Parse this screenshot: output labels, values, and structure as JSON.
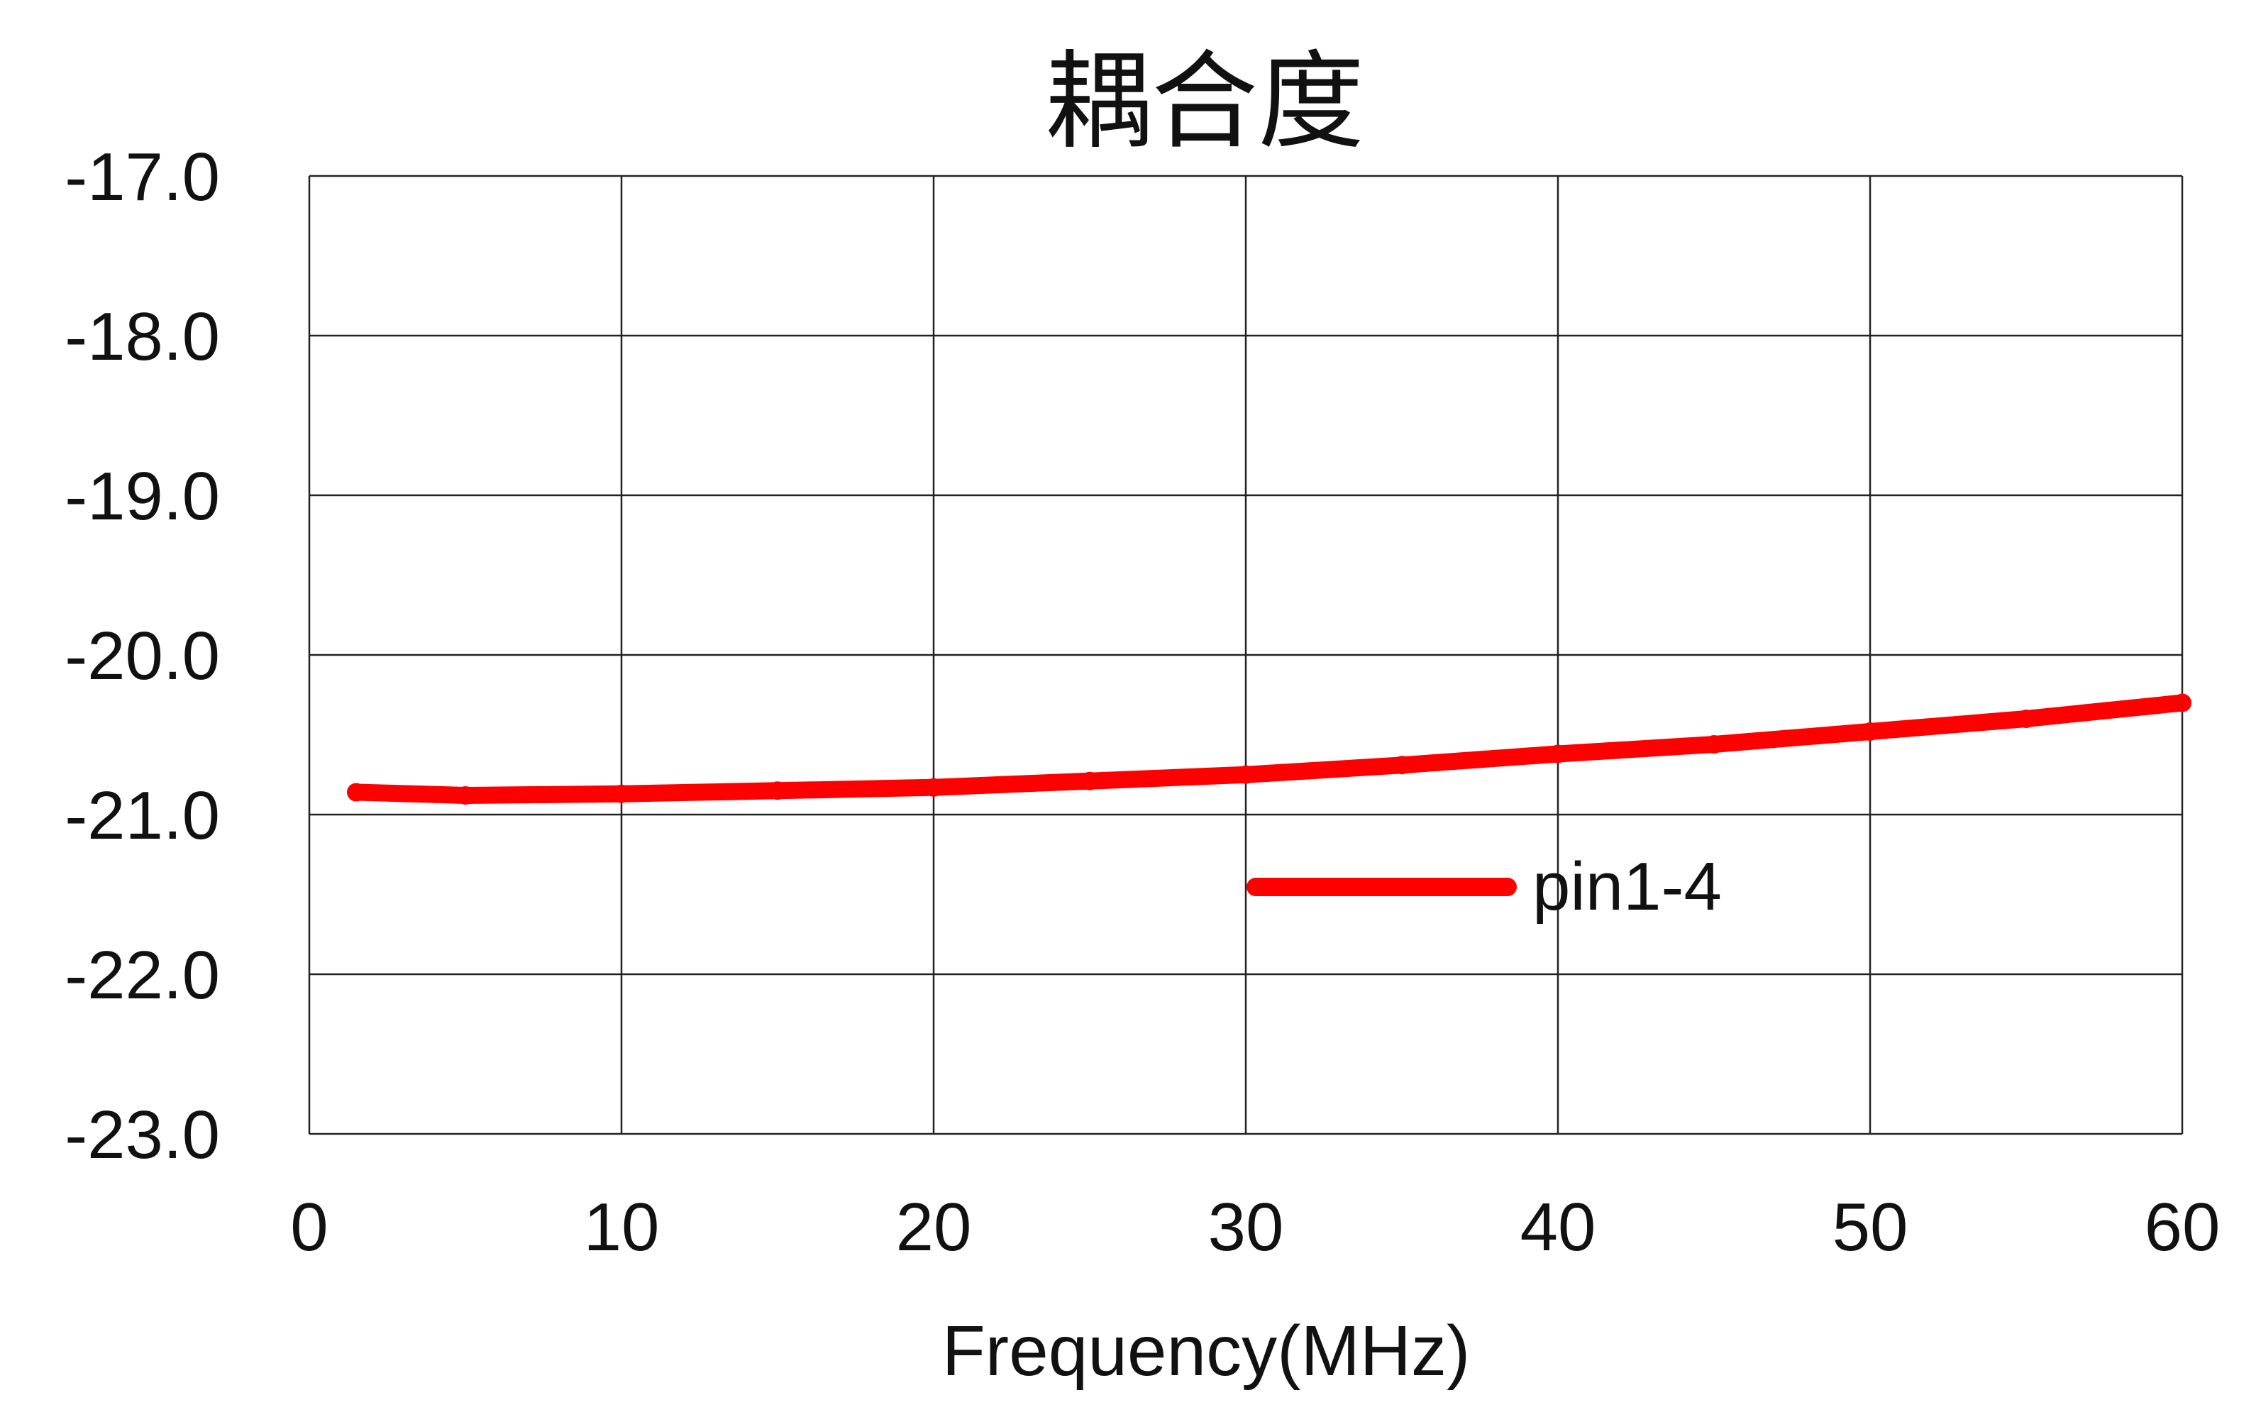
{
  "chart_data": {
    "type": "line",
    "title": "耦合度",
    "xlabel": "Frequency(MHz)",
    "ylabel": "",
    "xlim": [
      0,
      60
    ],
    "ylim": [
      -23.0,
      -17.0
    ],
    "x_ticks": [
      "0",
      "10",
      "20",
      "30",
      "40",
      "50",
      "60"
    ],
    "y_ticks": [
      "-17.0",
      "-18.0",
      "-19.0",
      "-20.0",
      "-21.0",
      "-22.0",
      "-23.0"
    ],
    "grid": true,
    "legend_position": "center",
    "series": [
      {
        "name": "pin1-4",
        "color": "#ff0000",
        "x": [
          1.5,
          5,
          10,
          15,
          20,
          25,
          30,
          35,
          40,
          45,
          50,
          55,
          60
        ],
        "y": [
          -20.86,
          -20.88,
          -20.87,
          -20.85,
          -20.83,
          -20.79,
          -20.75,
          -20.69,
          -20.62,
          -20.56,
          -20.48,
          -20.4,
          -20.3
        ]
      }
    ]
  }
}
